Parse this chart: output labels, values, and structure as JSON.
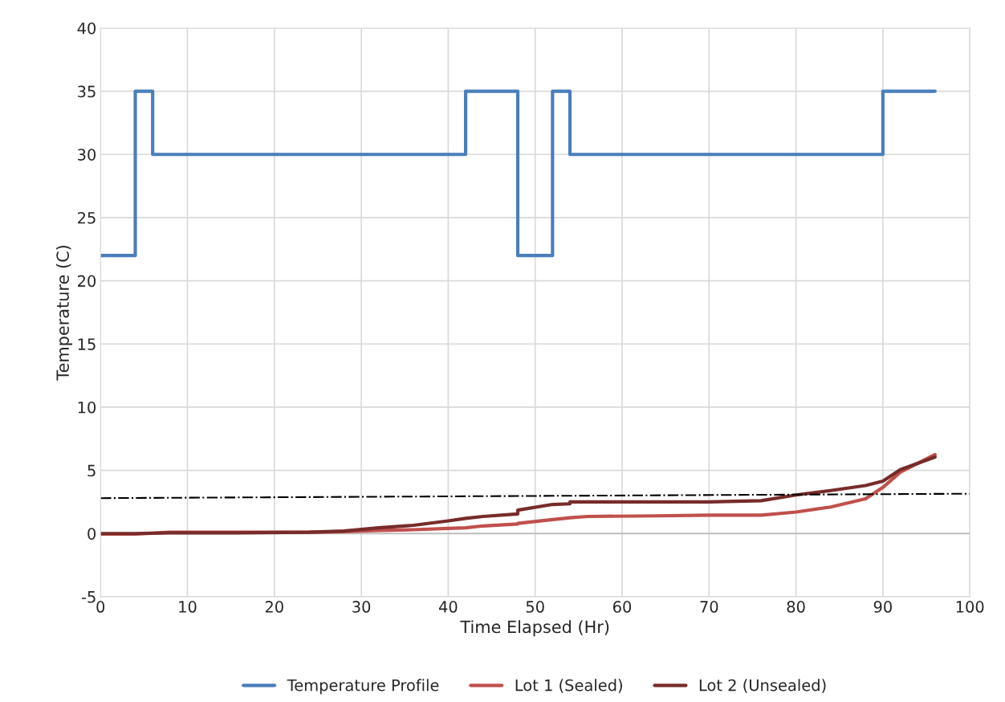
{
  "chart_data": {
    "type": "line",
    "xlabel": "Time Elapsed (Hr)",
    "ylabel": "Temperature (C)",
    "xlim": [
      0,
      100
    ],
    "xticks": [
      0,
      10,
      20,
      30,
      40,
      50,
      60,
      70,
      80,
      90,
      100
    ],
    "ylim": [
      -5,
      40
    ],
    "yticks": [
      -5,
      0,
      5,
      10,
      15,
      20,
      25,
      30,
      35,
      40
    ],
    "grid": true,
    "legend": "bottom",
    "marker": "none",
    "series": [
      {
        "name": "Temperature Profile",
        "type": "step",
        "color": "#4a7ebb",
        "x": [
          0,
          4,
          6,
          42,
          48,
          52,
          54,
          90,
          96
        ],
        "values": [
          22,
          35,
          30,
          35,
          22,
          35,
          30,
          35,
          35
        ]
      },
      {
        "name": "Lot 1 (Sealed)",
        "color": "#c0504d",
        "x": [
          0,
          4,
          8,
          16,
          24,
          28,
          32,
          36,
          40,
          42,
          44,
          48,
          48,
          52,
          54,
          56,
          64,
          70,
          76,
          80,
          84,
          88,
          90,
          92,
          96
        ],
        "values": [
          -0.05,
          -0.05,
          0.1,
          0.1,
          0.1,
          0.15,
          0.25,
          0.3,
          0.4,
          0.45,
          0.6,
          0.75,
          0.8,
          1.1,
          1.25,
          1.35,
          1.4,
          1.45,
          1.45,
          1.7,
          2.1,
          2.75,
          3.65,
          4.85,
          6.25
        ]
      },
      {
        "name": "Lot 2 (Unsealed)",
        "color": "#772c2a",
        "x": [
          0,
          4,
          8,
          16,
          24,
          28,
          32,
          36,
          40,
          42,
          44,
          48,
          48,
          52,
          54,
          54,
          60,
          70,
          76,
          80,
          84,
          88,
          90,
          92,
          96
        ],
        "values": [
          0,
          0,
          0.05,
          0.05,
          0.1,
          0.2,
          0.45,
          0.65,
          1.0,
          1.2,
          1.35,
          1.55,
          1.85,
          2.3,
          2.35,
          2.5,
          2.5,
          2.5,
          2.6,
          3.05,
          3.4,
          3.8,
          4.15,
          5.05,
          6.05
        ]
      },
      {
        "type": "line",
        "color": "#000000",
        "line_style": "dashdot",
        "x": [
          0,
          100
        ],
        "values": [
          2.8,
          3.15
        ]
      }
    ]
  }
}
